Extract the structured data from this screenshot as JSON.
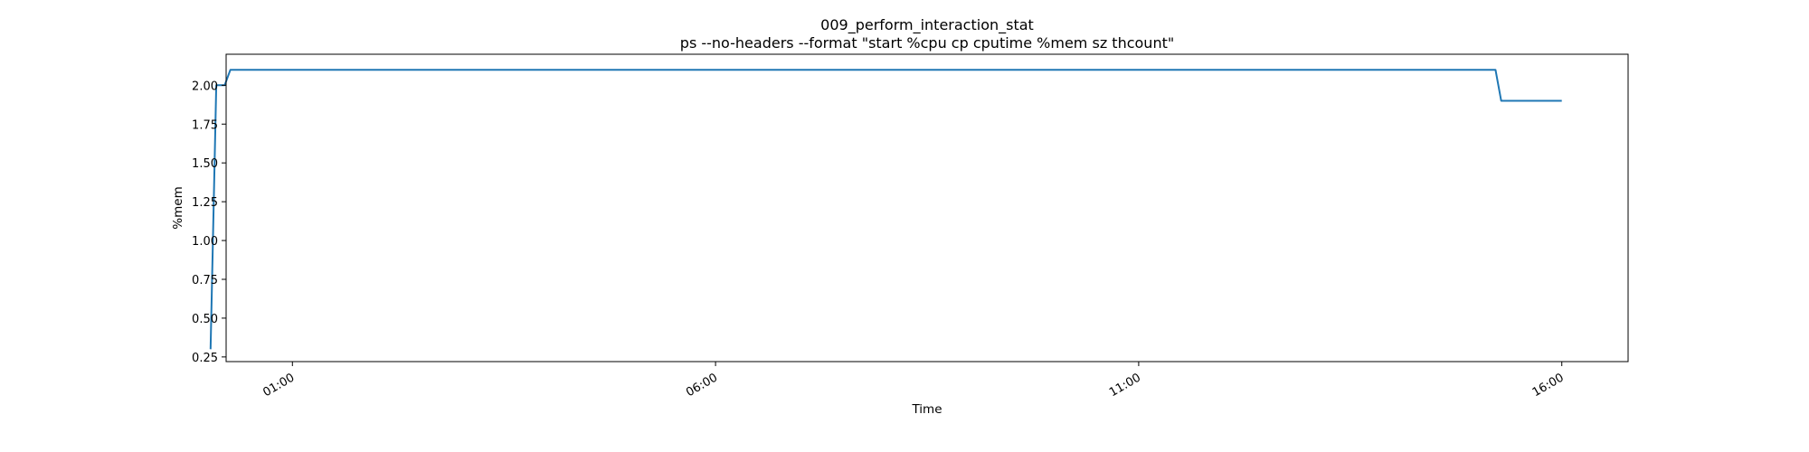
{
  "chart_data": {
    "type": "line",
    "title": "009_perform_interaction_stat",
    "subtitle": "ps --no-headers --format \"start %cpu cp cputime %mem sz thcount\"",
    "xlabel": "Time",
    "ylabel": "%mem",
    "x_ticks": [
      "01:00",
      "06:00",
      "11:00",
      "16:00"
    ],
    "y_ticks": [
      "0.25",
      "0.50",
      "0.75",
      "1.00",
      "1.25",
      "1.50",
      "1.75",
      "2.00"
    ],
    "xlim": [
      "00:13",
      "16:47"
    ],
    "ylim": [
      0.22,
      2.2
    ],
    "grid": false,
    "legend": "none",
    "series": [
      {
        "color": "#1f77b4",
        "points": [
          {
            "x": "00:02",
            "y": 0.3
          },
          {
            "x": "00:06",
            "y": 2.0
          },
          {
            "x": "00:12",
            "y": 2.0
          },
          {
            "x": "00:16",
            "y": 2.1
          },
          {
            "x": "15:13",
            "y": 2.1
          },
          {
            "x": "15:17",
            "y": 1.9
          },
          {
            "x": "16:00",
            "y": 1.9
          }
        ]
      }
    ]
  }
}
